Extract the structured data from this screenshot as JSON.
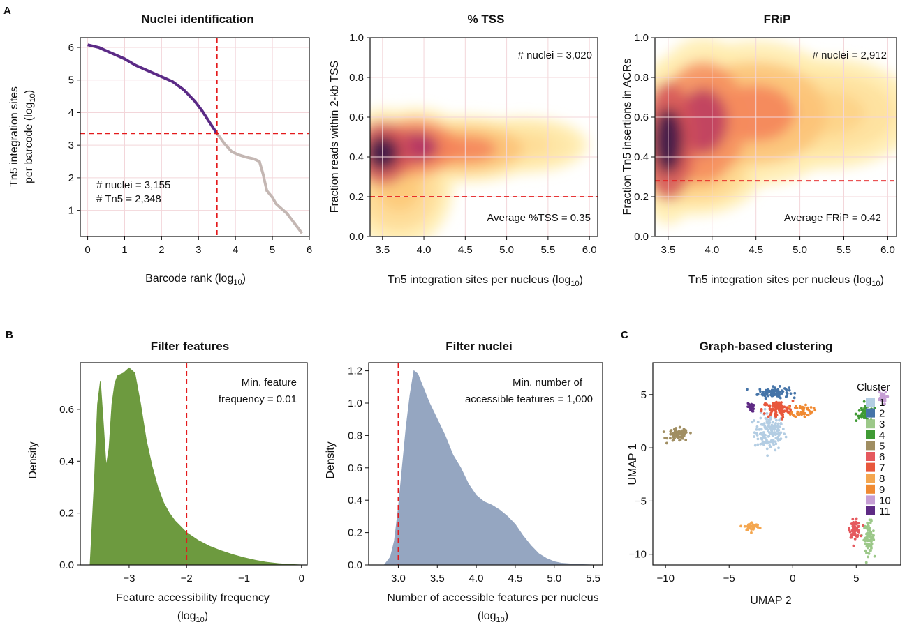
{
  "panel_labels": {
    "a": "A",
    "b": "B",
    "c": "C"
  },
  "colors": {
    "purple": "#5b2a86",
    "grey": "#c4b7b3",
    "green": "#6d9a3f",
    "blue": "#95a6c1",
    "red_line": "#e41a1c"
  },
  "chart_data": [
    {
      "id": "nuclei",
      "type": "line",
      "title": "Nuclei identification",
      "xlabel": "Barcode rank (log10)",
      "ylabel_lines": [
        "Tn5 integration sites",
        "per barcode (log10)"
      ],
      "xlim": [
        -0.2,
        6
      ],
      "ylim": [
        0.2,
        6.3
      ],
      "xticks": [
        0,
        1,
        2,
        3,
        4,
        5,
        6
      ],
      "yticks": [
        1,
        2,
        3,
        4,
        5,
        6
      ],
      "cutoff_x": 3.5,
      "cutoff_y": 3.36,
      "annotations": [
        "# nuclei = 3,155",
        "# Tn5 = 2,348"
      ],
      "series": [
        {
          "role": "selected",
          "x": [
            0,
            0.3,
            0.6,
            1.0,
            1.3,
            1.6,
            2.0,
            2.3,
            2.6,
            2.9,
            3.1,
            3.3,
            3.5
          ],
          "y": [
            6.08,
            6.0,
            5.85,
            5.65,
            5.45,
            5.3,
            5.1,
            4.95,
            4.7,
            4.35,
            4.05,
            3.7,
            3.36
          ]
        },
        {
          "role": "background",
          "x": [
            3.5,
            3.7,
            3.9,
            4.1,
            4.3,
            4.5,
            4.65,
            4.75,
            4.85,
            5.0,
            5.1,
            5.2,
            5.3,
            5.4,
            5.5,
            5.6,
            5.7,
            5.8
          ],
          "y": [
            3.36,
            3.05,
            2.8,
            2.7,
            2.63,
            2.58,
            2.5,
            2.1,
            1.6,
            1.4,
            1.2,
            1.1,
            1.0,
            0.9,
            0.75,
            0.6,
            0.45,
            0.3
          ]
        }
      ]
    },
    {
      "id": "tss",
      "type": "heatmap",
      "title": "% TSS",
      "xlabel": "Tn5 integration sites per nucleus (log10)",
      "ylabel": "Fraction reads within 2-kb TSS",
      "xlim": [
        3.35,
        6.1
      ],
      "ylim": [
        0,
        1
      ],
      "xticks": [
        3.5,
        4.0,
        4.5,
        5.0,
        5.5,
        6.0
      ],
      "yticks": [
        0.0,
        0.2,
        0.4,
        0.6,
        0.8,
        1.0
      ],
      "cutoff_y": 0.2,
      "annotations": [
        "# nuclei = 3,020",
        "Average %TSS = 0.35"
      ],
      "density_blobs": [
        {
          "x": 3.5,
          "y": 0.42,
          "w": 0.35,
          "h": 0.16,
          "level": 1.0
        },
        {
          "x": 3.9,
          "y": 0.45,
          "w": 0.5,
          "h": 0.14,
          "level": 0.75
        },
        {
          "x": 4.5,
          "y": 0.44,
          "w": 0.7,
          "h": 0.12,
          "level": 0.45
        },
        {
          "x": 3.7,
          "y": 0.25,
          "w": 0.5,
          "h": 0.22,
          "level": 0.25
        },
        {
          "x": 5.2,
          "y": 0.46,
          "w": 0.6,
          "h": 0.1,
          "level": 0.15
        }
      ]
    },
    {
      "id": "frip",
      "type": "heatmap",
      "title": "FRiP",
      "xlabel": "Tn5 integration sites per nucleus (log10)",
      "ylabel": "Fraction Tn5 insertions in ACRs",
      "xlim": [
        3.35,
        6.1
      ],
      "ylim": [
        0,
        1
      ],
      "xticks": [
        3.5,
        4.0,
        4.5,
        5.0,
        5.5,
        6.0
      ],
      "yticks": [
        0.0,
        0.2,
        0.4,
        0.6,
        0.8,
        1.0
      ],
      "cutoff_y": 0.28,
      "annotations": [
        "# nuclei = 2,912",
        "Average FRiP = 0.42"
      ],
      "density_blobs": [
        {
          "x": 3.5,
          "y": 0.48,
          "w": 0.3,
          "h": 0.3,
          "level": 1.0
        },
        {
          "x": 3.9,
          "y": 0.58,
          "w": 0.5,
          "h": 0.3,
          "level": 0.7
        },
        {
          "x": 4.5,
          "y": 0.62,
          "w": 0.8,
          "h": 0.26,
          "level": 0.45
        },
        {
          "x": 5.3,
          "y": 0.62,
          "w": 0.8,
          "h": 0.2,
          "level": 0.2
        },
        {
          "x": 3.8,
          "y": 0.33,
          "w": 0.6,
          "h": 0.16,
          "level": 0.3
        }
      ]
    },
    {
      "id": "features",
      "type": "area",
      "title": "Filter features",
      "xlabel_lines": [
        "Feature accessibility frequency",
        "(log10)"
      ],
      "ylabel": "Density",
      "xlim": [
        -3.85,
        0.1
      ],
      "ylim": [
        0,
        0.78
      ],
      "xticks": [
        -3,
        -2,
        -1,
        0
      ],
      "yticks": [
        0.0,
        0.2,
        0.4,
        0.6
      ],
      "cutoff_x": -2,
      "annotations": [
        "Min. feature",
        "frequency = 0.01"
      ],
      "x": [
        -3.68,
        -3.6,
        -3.55,
        -3.5,
        -3.45,
        -3.4,
        -3.35,
        -3.3,
        -3.25,
        -3.2,
        -3.1,
        -3.0,
        -2.9,
        -2.8,
        -2.7,
        -2.6,
        -2.5,
        -2.4,
        -2.3,
        -2.2,
        -2.0,
        -1.8,
        -1.6,
        -1.4,
        -1.2,
        -1.0,
        -0.8,
        -0.6,
        -0.4,
        -0.2,
        0.0
      ],
      "y": [
        0.0,
        0.35,
        0.62,
        0.71,
        0.55,
        0.38,
        0.45,
        0.62,
        0.7,
        0.73,
        0.74,
        0.76,
        0.74,
        0.62,
        0.48,
        0.38,
        0.3,
        0.24,
        0.2,
        0.17,
        0.125,
        0.095,
        0.072,
        0.055,
        0.04,
        0.028,
        0.018,
        0.01,
        0.005,
        0.002,
        0.0
      ]
    },
    {
      "id": "nuclei_filter",
      "type": "area",
      "title": "Filter nuclei",
      "xlabel_lines": [
        "Number of accessible features per nucleus",
        "(log10)"
      ],
      "ylabel": "Density",
      "xlim": [
        2.62,
        5.62
      ],
      "ylim": [
        0,
        1.25
      ],
      "xticks": [
        3.0,
        3.5,
        4.0,
        4.5,
        5.0,
        5.5
      ],
      "yticks": [
        0.0,
        0.2,
        0.4,
        0.6,
        0.8,
        1.0,
        1.2
      ],
      "cutoff_x": 3.0,
      "annotations": [
        "Min. number of",
        "accessible features = 1,000"
      ],
      "x": [
        2.82,
        2.9,
        2.95,
        3.0,
        3.05,
        3.1,
        3.15,
        3.2,
        3.25,
        3.3,
        3.4,
        3.5,
        3.6,
        3.7,
        3.8,
        3.9,
        4.0,
        4.1,
        4.2,
        4.3,
        4.4,
        4.5,
        4.6,
        4.7,
        4.8,
        4.9,
        5.0,
        5.1,
        5.3,
        5.5
      ],
      "y": [
        0.0,
        0.05,
        0.15,
        0.35,
        0.6,
        0.85,
        1.05,
        1.2,
        1.18,
        1.12,
        1.0,
        0.9,
        0.8,
        0.68,
        0.6,
        0.5,
        0.43,
        0.39,
        0.37,
        0.34,
        0.3,
        0.25,
        0.18,
        0.12,
        0.07,
        0.04,
        0.02,
        0.01,
        0.003,
        0.0
      ]
    },
    {
      "id": "umap",
      "type": "scatter",
      "title": "Graph-based clustering",
      "xlabel": "UMAP 2",
      "ylabel": "UMAP 1",
      "xlim": [
        -11,
        8.5
      ],
      "ylim": [
        -11,
        8
      ],
      "xticks": [
        -10,
        -5,
        0,
        5,
        10
      ],
      "yticks": [
        -10,
        -5,
        0,
        5
      ],
      "legend_title": "Cluster",
      "legend_position": "right",
      "clusters": [
        {
          "name": "1",
          "color": "#b3cde3",
          "cx": -1.8,
          "cy": 1.5,
          "sx": 1.2,
          "sy": 1.7,
          "n": 150
        },
        {
          "name": "2",
          "color": "#4574a8",
          "cx": -1.5,
          "cy": 5.2,
          "sx": 1.2,
          "sy": 0.5,
          "n": 90
        },
        {
          "name": "3",
          "color": "#9cc889",
          "cx": 6.0,
          "cy": -8.4,
          "sx": 0.4,
          "sy": 1.4,
          "n": 80
        },
        {
          "name": "4",
          "color": "#3f9a34",
          "cx": 5.8,
          "cy": 3.2,
          "sx": 0.8,
          "sy": 0.7,
          "n": 70
        },
        {
          "name": "5",
          "color": "#a08e62",
          "cx": -9.0,
          "cy": 1.2,
          "sx": 0.8,
          "sy": 0.6,
          "n": 80
        },
        {
          "name": "6",
          "color": "#e5595e",
          "cx": 4.9,
          "cy": -7.6,
          "sx": 0.4,
          "sy": 0.8,
          "n": 70
        },
        {
          "name": "7",
          "color": "#e8573c",
          "cx": -1.2,
          "cy": 3.6,
          "sx": 1.2,
          "sy": 0.8,
          "n": 100
        },
        {
          "name": "8",
          "color": "#f4a64f",
          "cx": -3.2,
          "cy": -7.4,
          "sx": 0.6,
          "sy": 0.4,
          "n": 45
        },
        {
          "name": "9",
          "color": "#f08a32",
          "cx": 0.8,
          "cy": 3.5,
          "sx": 0.8,
          "sy": 0.6,
          "n": 50
        },
        {
          "name": "10",
          "color": "#c69ed4",
          "cx": 7.0,
          "cy": 4.7,
          "sx": 0.4,
          "sy": 0.6,
          "n": 35
        },
        {
          "name": "11",
          "color": "#5e2a84",
          "cx": -3.3,
          "cy": 3.8,
          "sx": 0.25,
          "sy": 0.4,
          "n": 25
        }
      ]
    }
  ]
}
